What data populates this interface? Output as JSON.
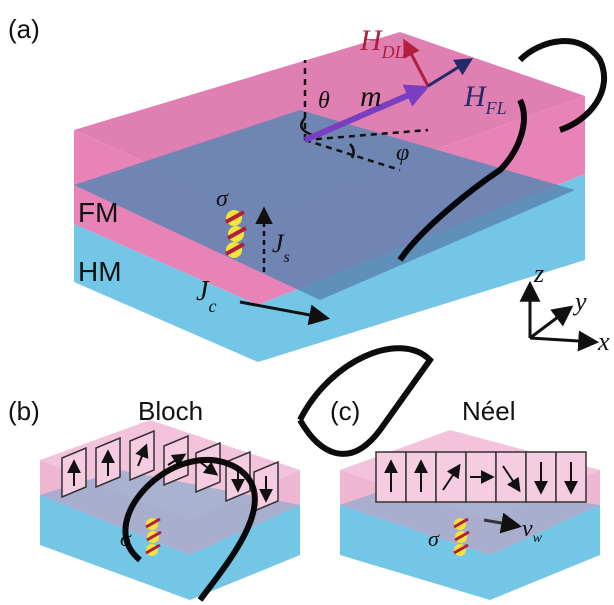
{
  "panel_a": {
    "tag": "(a)",
    "layers": {
      "top": "FM",
      "bottom": "HM"
    },
    "vectors": {
      "m": "m",
      "h_dl": "H",
      "h_dl_sub": "DL",
      "h_fl": "H",
      "h_fl_sub": "FL"
    },
    "angles": {
      "theta": "θ",
      "phi": "φ"
    },
    "sigma": "σ",
    "js": "J",
    "js_sub": "s",
    "jc": "J",
    "jc_sub": "c",
    "axes": {
      "x": "x",
      "y": "y",
      "z": "z"
    }
  },
  "panel_b": {
    "tag": "(b)",
    "title": "Bloch",
    "sigma": "σ"
  },
  "panel_c": {
    "tag": "(c)",
    "title": "Néel",
    "sigma": "σ",
    "v": "v",
    "v_sub": "w"
  },
  "colors": {
    "fm_top": "#e07fb2",
    "fm_side": "#e883b8",
    "hm_side": "#74c6e6",
    "overlap": "#5a86b1",
    "m_vector": "#7a3fc0",
    "h_dl": "#b01f3d",
    "h_fl": "#222a6b",
    "spin_ball": "#f3e33a",
    "spin_arrow": "#b01f3d",
    "watermark": "#000000"
  },
  "icons": [
    "spin-arrow-icon",
    "axes-icon"
  ]
}
